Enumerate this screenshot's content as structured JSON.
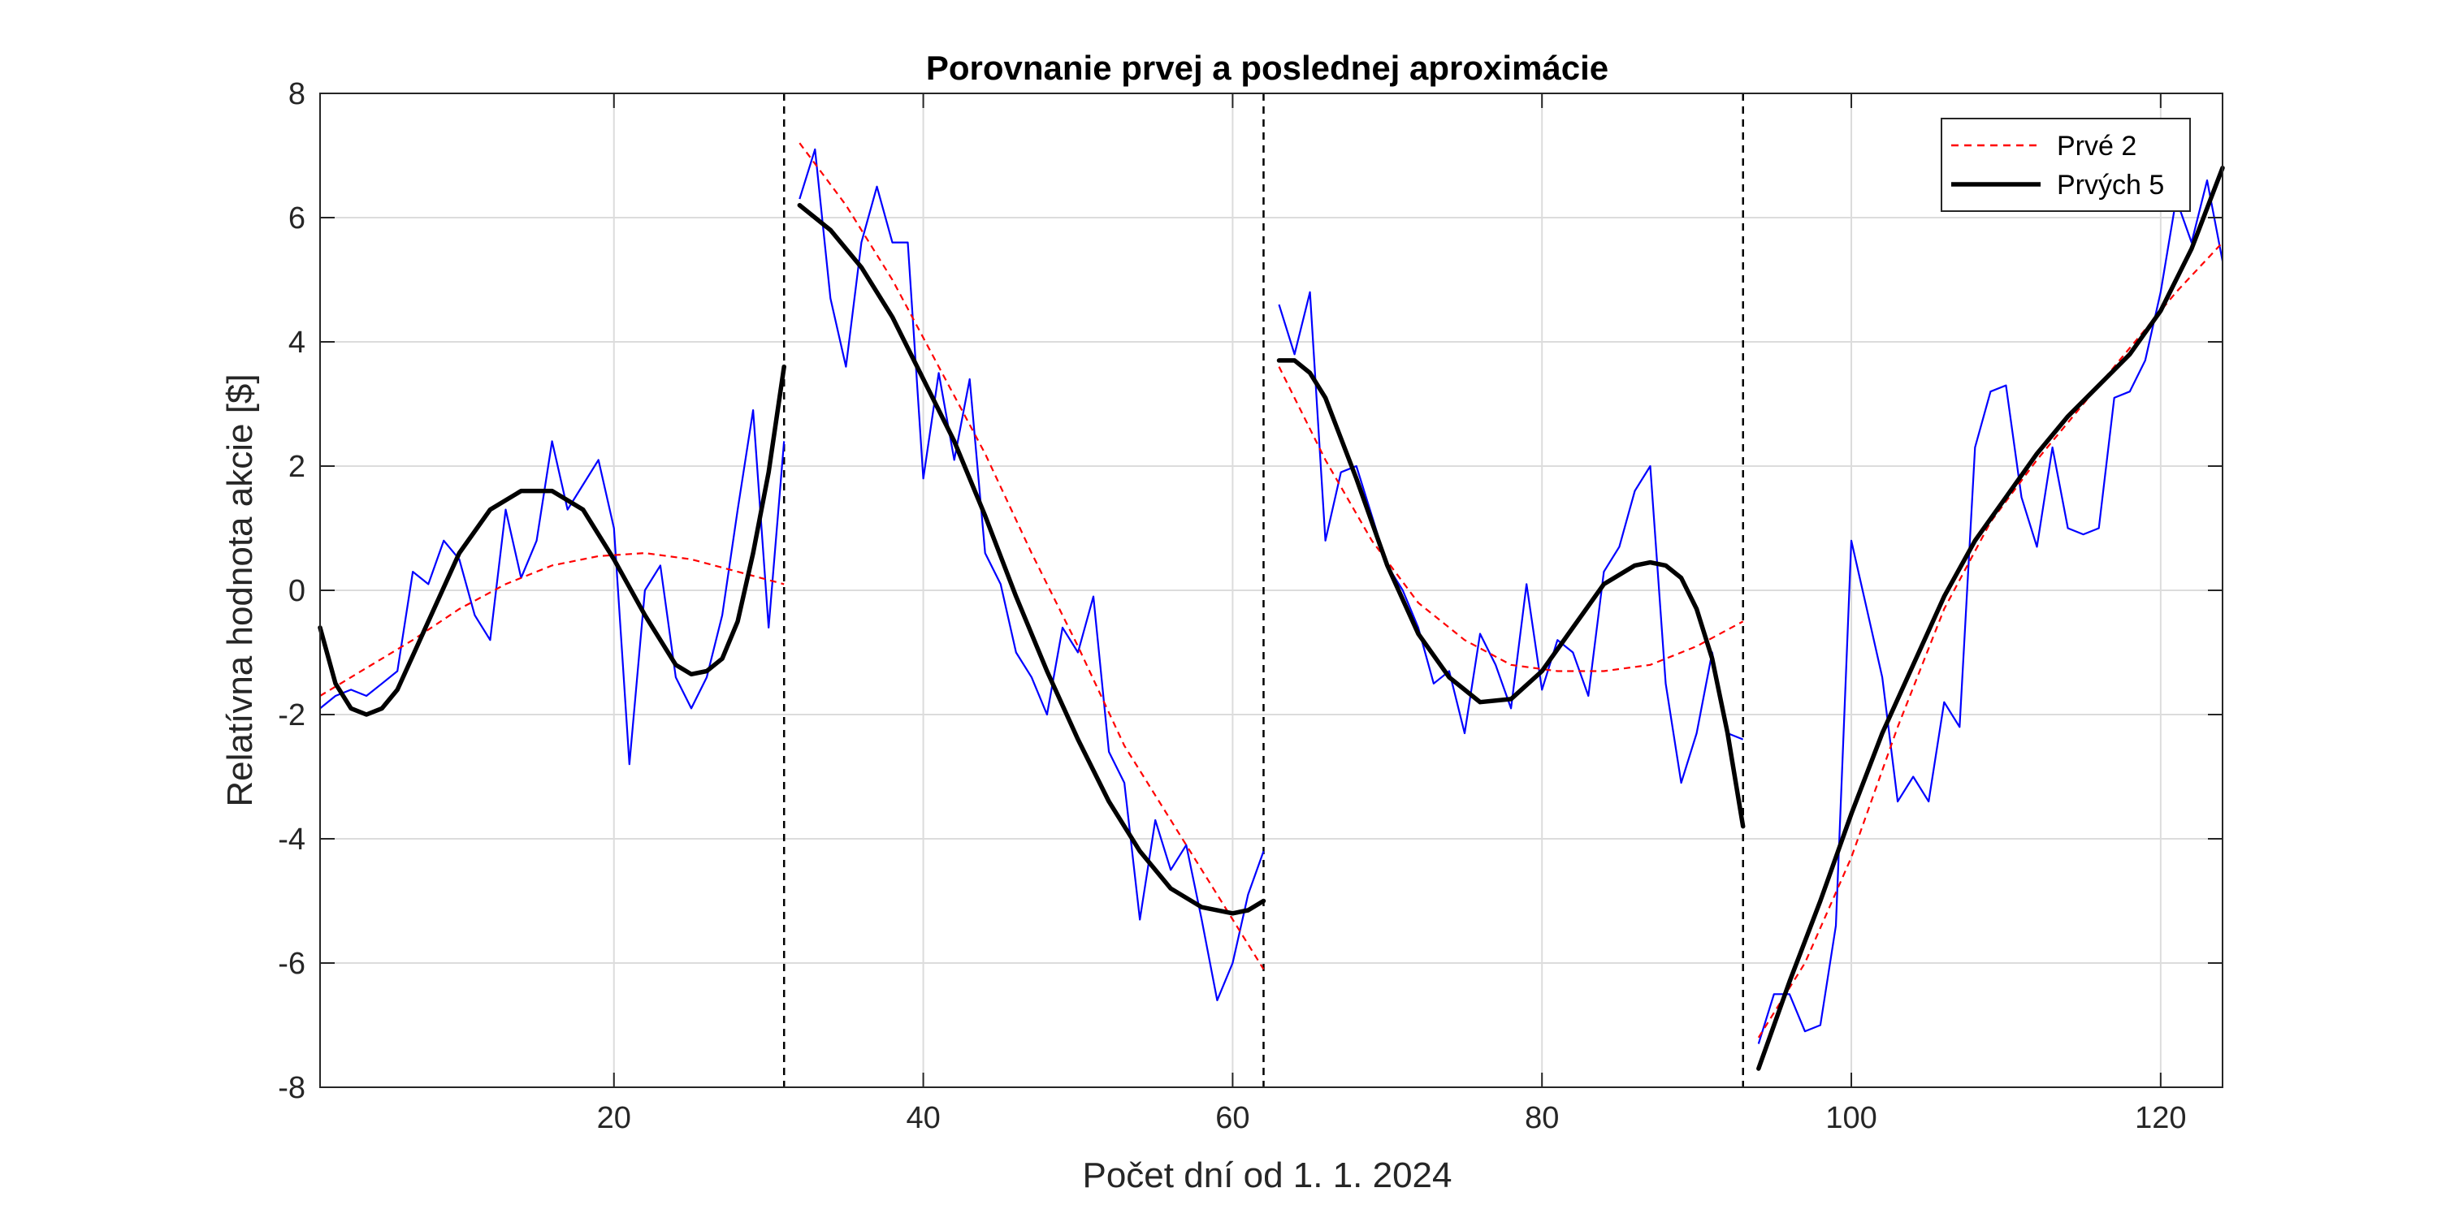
{
  "chart_data": {
    "type": "line",
    "title": "Porovnanie prvej a poslednej aproximácie",
    "xlabel": "Počet dní od 1. 1. 2024",
    "ylabel": "Relatívna hodnota akcie [$]",
    "xlim": [
      1,
      124
    ],
    "ylim": [
      -8,
      8
    ],
    "xticks": [
      20,
      40,
      60,
      80,
      100,
      120
    ],
    "xtick_labels": [
      "20",
      "40",
      "60",
      "80",
      "100",
      "120"
    ],
    "yticks": [
      8,
      6,
      4,
      2,
      0,
      -2,
      -4,
      -6,
      -8
    ],
    "ytick_labels": [
      "8",
      "6",
      "4",
      "2",
      "0",
      "-2",
      "-4",
      "-6",
      "-8"
    ],
    "grid": true,
    "legend_position": "top-right",
    "segment_boundaries": [
      31,
      62,
      93
    ],
    "raw_color": "#0000ff",
    "legend": [
      {
        "label": "Prvé 2",
        "color": "#ff0000",
        "style": "dashed"
      },
      {
        "label": "Prvých 5",
        "color": "#000000",
        "style": "solid"
      }
    ],
    "series": [
      {
        "name": "",
        "role": "raw",
        "color": "#0000ff",
        "segments": [
          {
            "x": [
              1,
              2,
              3,
              4,
              5,
              6,
              7,
              8,
              9,
              10,
              11,
              12,
              13,
              14,
              15,
              16,
              17,
              18,
              19,
              20,
              21,
              22,
              23,
              24,
              25,
              26,
              27,
              28,
              29,
              30,
              31
            ],
            "y": [
              -1.9,
              -1.7,
              -1.6,
              -1.7,
              -1.5,
              -1.3,
              0.3,
              0.1,
              0.8,
              0.5,
              -0.4,
              -0.8,
              1.3,
              0.2,
              0.8,
              2.4,
              1.3,
              1.7,
              2.1,
              1.0,
              -2.8,
              0.0,
              0.4,
              -1.4,
              -1.9,
              -1.4,
              -0.4,
              1.3,
              2.9,
              -0.6,
              2.4
            ]
          },
          {
            "x": [
              32,
              33,
              34,
              35,
              36,
              37,
              38,
              39,
              40,
              41,
              42,
              43,
              44,
              45,
              46,
              47,
              48,
              49,
              50,
              51,
              52,
              53,
              54,
              55,
              56,
              57,
              58,
              59,
              60,
              61,
              62
            ],
            "y": [
              6.3,
              7.1,
              4.7,
              3.6,
              5.6,
              6.5,
              5.6,
              5.6,
              1.8,
              3.5,
              2.1,
              3.4,
              0.6,
              0.1,
              -1.0,
              -1.4,
              -2.0,
              -0.6,
              -1.0,
              -0.1,
              -2.6,
              -3.1,
              -5.3,
              -3.7,
              -4.5,
              -4.1,
              -5.3,
              -6.6,
              -6.0,
              -4.9,
              -4.2
            ]
          },
          {
            "x": [
              63,
              64,
              65,
              66,
              67,
              68,
              69,
              70,
              71,
              72,
              73,
              74,
              75,
              76,
              77,
              78,
              79,
              80,
              81,
              82,
              83,
              84,
              85,
              86,
              87,
              88,
              89,
              90,
              91,
              92,
              93
            ],
            "y": [
              4.6,
              3.8,
              4.8,
              0.8,
              1.9,
              2.0,
              1.2,
              0.4,
              0.0,
              -0.6,
              -1.5,
              -1.3,
              -2.3,
              -0.7,
              -1.2,
              -1.9,
              0.1,
              -1.6,
              -0.8,
              -1.0,
              -1.7,
              0.3,
              0.7,
              1.6,
              2.0,
              -1.5,
              -3.1,
              -2.3,
              -1.0,
              -2.3,
              -2.4
            ]
          },
          {
            "x": [
              94,
              95,
              96,
              97,
              98,
              99,
              100,
              101,
              102,
              103,
              104,
              105,
              106,
              107,
              108,
              109,
              110,
              111,
              112,
              113,
              114,
              115,
              116,
              117,
              118,
              119,
              120,
              121,
              122,
              123,
              124
            ],
            "y": [
              -7.3,
              -6.5,
              -6.5,
              -7.1,
              -7.0,
              -5.4,
              0.8,
              -0.3,
              -1.4,
              -3.4,
              -3.0,
              -3.4,
              -1.8,
              -2.2,
              2.3,
              3.2,
              3.3,
              1.5,
              0.7,
              2.3,
              1.0,
              0.9,
              1.0,
              3.1,
              3.2,
              3.7,
              4.8,
              6.3,
              5.6,
              6.6,
              5.3
            ]
          }
        ]
      },
      {
        "name": "Prvé 2",
        "role": "approx",
        "color": "#ff0000",
        "style": "dashed",
        "segments": [
          {
            "x": [
              1,
              4,
              7,
              10,
              13,
              16,
              19,
              22,
              25,
              28,
              31
            ],
            "y": [
              -1.7,
              -1.25,
              -0.8,
              -0.3,
              0.1,
              0.4,
              0.55,
              0.6,
              0.5,
              0.3,
              0.1
            ]
          },
          {
            "x": [
              32,
              35,
              38,
              41,
              44,
              47,
              50,
              53,
              56,
              59,
              62
            ],
            "y": [
              7.2,
              6.2,
              5.0,
              3.6,
              2.2,
              0.6,
              -0.9,
              -2.5,
              -3.7,
              -4.9,
              -6.1
            ]
          },
          {
            "x": [
              63,
              66,
              69,
              72,
              75,
              78,
              81,
              84,
              87,
              90,
              93
            ],
            "y": [
              3.6,
              2.1,
              0.8,
              -0.2,
              -0.8,
              -1.2,
              -1.3,
              -1.3,
              -1.2,
              -0.9,
              -0.5
            ]
          },
          {
            "x": [
              94,
              97,
              100,
              103,
              106,
              109,
              112,
              115,
              118,
              121,
              124
            ],
            "y": [
              -7.2,
              -6.0,
              -4.3,
              -2.2,
              -0.3,
              1.1,
              2.1,
              3.0,
              3.9,
              4.8,
              5.6
            ]
          }
        ]
      },
      {
        "name": "Prvých 5",
        "role": "approx",
        "color": "#000000",
        "style": "solid",
        "segments": [
          {
            "x": [
              1,
              2,
              3,
              4,
              5,
              6,
              8,
              10,
              12,
              14,
              16,
              18,
              20,
              22,
              24,
              25,
              26,
              27,
              28,
              29,
              30,
              31
            ],
            "y": [
              -0.6,
              -1.5,
              -1.9,
              -2.0,
              -1.9,
              -1.6,
              -0.5,
              0.6,
              1.3,
              1.6,
              1.6,
              1.3,
              0.5,
              -0.4,
              -1.2,
              -1.35,
              -1.3,
              -1.1,
              -0.5,
              0.6,
              1.9,
              3.6
            ]
          },
          {
            "x": [
              32,
              34,
              36,
              38,
              40,
              42,
              44,
              46,
              48,
              50,
              52,
              54,
              56,
              58,
              60,
              61,
              62
            ],
            "y": [
              6.2,
              5.8,
              5.2,
              4.4,
              3.4,
              2.4,
              1.2,
              -0.1,
              -1.3,
              -2.4,
              -3.4,
              -4.2,
              -4.8,
              -5.1,
              -5.2,
              -5.15,
              -5.0
            ]
          },
          {
            "x": [
              63,
              64,
              65,
              66,
              68,
              70,
              72,
              74,
              76,
              78,
              80,
              82,
              84,
              86,
              87,
              88,
              89,
              90,
              91,
              92,
              93
            ],
            "y": [
              3.7,
              3.7,
              3.5,
              3.1,
              1.8,
              0.4,
              -0.7,
              -1.4,
              -1.8,
              -1.75,
              -1.3,
              -0.6,
              0.1,
              0.4,
              0.45,
              0.4,
              0.2,
              -0.3,
              -1.1,
              -2.3,
              -3.8
            ]
          },
          {
            "x": [
              94,
              96,
              98,
              100,
              102,
              104,
              106,
              108,
              110,
              112,
              114,
              116,
              118,
              120,
              122,
              124
            ],
            "y": [
              -7.7,
              -6.3,
              -5.0,
              -3.6,
              -2.3,
              -1.2,
              -0.1,
              0.8,
              1.5,
              2.2,
              2.8,
              3.3,
              3.8,
              4.5,
              5.5,
              6.8
            ]
          }
        ]
      }
    ]
  }
}
